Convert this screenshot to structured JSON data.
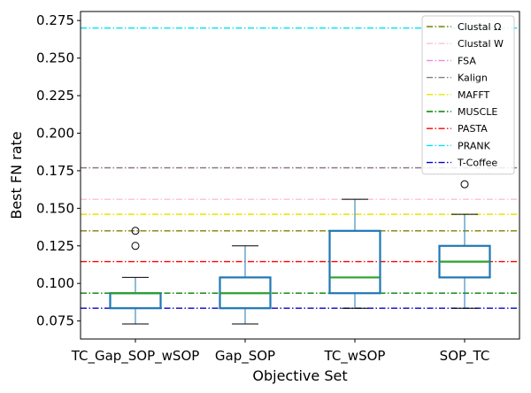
{
  "chart_data": {
    "type": "box",
    "xlabel": "Objective Set",
    "ylabel": "Best FN rate",
    "ylim": [
      0.063,
      0.281
    ],
    "yticks": [
      "0.075",
      "0.100",
      "0.125",
      "0.150",
      "0.175",
      "0.200",
      "0.225",
      "0.250",
      "0.275"
    ],
    "categories": [
      "TC_Gap_SOP_wSOP",
      "Gap_SOP",
      "TC_wSOP",
      "SOP_TC"
    ],
    "box_color": "#1f77b4",
    "median_color": "#2ca02c",
    "boxes": [
      {
        "whisker_low": 0.073,
        "q1": 0.0835,
        "median": 0.0935,
        "q3": 0.0935,
        "whisker_high": 0.104,
        "outliers": [
          0.125,
          0.135
        ]
      },
      {
        "whisker_low": 0.073,
        "q1": 0.0835,
        "median": 0.0935,
        "q3": 0.104,
        "whisker_high": 0.125,
        "outliers": []
      },
      {
        "whisker_low": 0.0835,
        "q1": 0.0935,
        "median": 0.104,
        "q3": 0.135,
        "whisker_high": 0.156,
        "outliers": []
      },
      {
        "whisker_low": 0.0835,
        "q1": 0.104,
        "median": 0.1145,
        "q3": 0.125,
        "whisker_high": 0.146,
        "outliers": [
          0.166
        ]
      }
    ],
    "reference_lines": [
      {
        "name": "Clustal Ω",
        "value": 0.135,
        "color": "#808000"
      },
      {
        "name": "Clustal W",
        "value": 0.156,
        "color": "#ffc0cb"
      },
      {
        "name": "FSA",
        "value": 0.177,
        "color": "#ee82ee"
      },
      {
        "name": "Kalign",
        "value": 0.177,
        "color": "#808080"
      },
      {
        "name": "MAFFT",
        "value": 0.146,
        "color": "#e5e500"
      },
      {
        "name": "MUSCLE",
        "value": 0.0935,
        "color": "#008000"
      },
      {
        "name": "PASTA",
        "value": 0.1145,
        "color": "#ff0000"
      },
      {
        "name": "PRANK",
        "value": 0.27,
        "color": "#00e5ee"
      },
      {
        "name": "T-Coffee",
        "value": 0.0835,
        "color": "#0000cd"
      }
    ],
    "legend_position": "top-right",
    "grid": false
  }
}
